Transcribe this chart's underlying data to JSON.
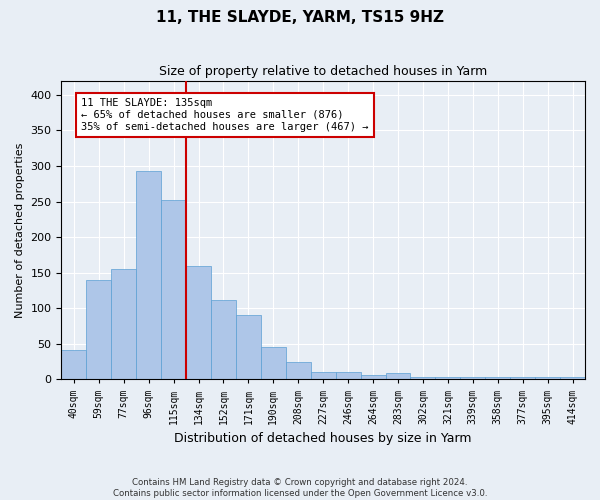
{
  "title": "11, THE SLAYDE, YARM, TS15 9HZ",
  "subtitle": "Size of property relative to detached houses in Yarm",
  "xlabel": "Distribution of detached houses by size in Yarm",
  "ylabel": "Number of detached properties",
  "categories": [
    "40sqm",
    "59sqm",
    "77sqm",
    "96sqm",
    "115sqm",
    "134sqm",
    "152sqm",
    "171sqm",
    "190sqm",
    "208sqm",
    "227sqm",
    "246sqm",
    "264sqm",
    "283sqm",
    "302sqm",
    "321sqm",
    "339sqm",
    "358sqm",
    "377sqm",
    "395sqm",
    "414sqm"
  ],
  "values": [
    42,
    139,
    155,
    293,
    252,
    160,
    112,
    90,
    46,
    24,
    10,
    10,
    6,
    9,
    3,
    4,
    3,
    3,
    3,
    3,
    3
  ],
  "bar_color": "#aec6e8",
  "bar_edge_color": "#5a9fd4",
  "vline_x": 4.5,
  "vline_color": "#cc0000",
  "annotation_line1": "11 THE SLAYDE: 135sqm",
  "annotation_line2": "← 65% of detached houses are smaller (876)",
  "annotation_line3": "35% of semi-detached houses are larger (467) →",
  "annotation_box_color": "#ffffff",
  "annotation_box_edge": "#cc0000",
  "bg_color": "#e8eef5",
  "plot_bg_color": "#e8eef5",
  "footer_line1": "Contains HM Land Registry data © Crown copyright and database right 2024.",
  "footer_line2": "Contains public sector information licensed under the Open Government Licence v3.0.",
  "ylim": [
    0,
    420
  ],
  "yticks": [
    0,
    50,
    100,
    150,
    200,
    250,
    300,
    350,
    400
  ]
}
